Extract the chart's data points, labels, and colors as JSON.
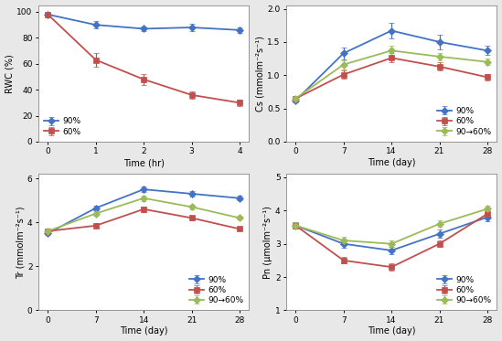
{
  "top_left": {
    "xlabel": "Time (hr)",
    "ylabel": "RWC (%)",
    "x": [
      0,
      1,
      2,
      3,
      4
    ],
    "series": [
      {
        "label": "90%",
        "y": [
          98,
          90,
          87,
          88,
          86
        ],
        "yerr": [
          1.0,
          3.0,
          2.0,
          2.5,
          2.0
        ],
        "color": "#4472c4",
        "marker": "D"
      },
      {
        "label": "60%",
        "y": [
          98,
          63,
          48,
          36,
          30
        ],
        "yerr": [
          1.0,
          5.0,
          4.0,
          3.0,
          2.5
        ],
        "color": "#c0504d",
        "marker": "s"
      }
    ],
    "ylim": [
      0,
      105
    ],
    "yticks": [
      0,
      20,
      40,
      60,
      80,
      100
    ],
    "legend_loc": "lower left",
    "legend_bbox": null
  },
  "top_right": {
    "xlabel": "Time (day)",
    "ylabel": "Cs (mmolm⁻²s⁻¹)",
    "x": [
      0,
      7,
      14,
      21,
      28
    ],
    "series": [
      {
        "label": "90%",
        "y": [
          0.62,
          1.33,
          1.67,
          1.5,
          1.37
        ],
        "yerr": [
          0.03,
          0.09,
          0.12,
          0.11,
          0.07
        ],
        "color": "#4472c4",
        "marker": "D"
      },
      {
        "label": "60%",
        "y": [
          0.65,
          1.01,
          1.26,
          1.13,
          0.97
        ],
        "yerr": [
          0.03,
          0.06,
          0.07,
          0.06,
          0.05
        ],
        "color": "#c0504d",
        "marker": "s"
      },
      {
        "label": "90→60%",
        "y": [
          0.65,
          1.16,
          1.37,
          1.28,
          1.2
        ],
        "yerr": [
          0.03,
          0.07,
          0.08,
          0.06,
          0.05
        ],
        "color": "#9bbb59",
        "marker": "D"
      }
    ],
    "ylim": [
      0,
      2.05
    ],
    "yticks": [
      0,
      0.5,
      1.0,
      1.5,
      2.0
    ],
    "legend_loc": "lower right",
    "legend_bbox": null
  },
  "bottom_left": {
    "xlabel": "Time (day)",
    "ylabel": "Tr (mmolm⁻²s⁻¹)",
    "x": [
      0,
      7,
      14,
      21,
      28
    ],
    "series": [
      {
        "label": "90%",
        "y": [
          3.5,
          4.65,
          5.5,
          5.3,
          5.1
        ],
        "yerr": [
          0.08,
          0.12,
          0.12,
          0.12,
          0.1
        ],
        "color": "#4472c4",
        "marker": "D"
      },
      {
        "label": "60%",
        "y": [
          3.6,
          3.85,
          4.6,
          4.2,
          3.7
        ],
        "yerr": [
          0.08,
          0.1,
          0.12,
          0.1,
          0.08
        ],
        "color": "#c0504d",
        "marker": "s"
      },
      {
        "label": "90→60%",
        "y": [
          3.6,
          4.4,
          5.1,
          4.7,
          4.2
        ],
        "yerr": [
          0.08,
          0.1,
          0.12,
          0.1,
          0.08
        ],
        "color": "#9bbb59",
        "marker": "D"
      }
    ],
    "ylim": [
      0,
      6.2
    ],
    "yticks": [
      0,
      2,
      4,
      6
    ],
    "legend_loc": "lower right",
    "legend_bbox": null
  },
  "bottom_right": {
    "xlabel": "Time (day)",
    "ylabel": "Pn (μmolm⁻²s⁻¹)",
    "x": [
      0,
      7,
      14,
      21,
      28
    ],
    "series": [
      {
        "label": "90%",
        "y": [
          3.55,
          3.0,
          2.8,
          3.3,
          3.8
        ],
        "yerr": [
          0.1,
          0.12,
          0.12,
          0.12,
          0.12
        ],
        "color": "#4472c4",
        "marker": "D"
      },
      {
        "label": "60%",
        "y": [
          3.55,
          2.5,
          2.3,
          3.0,
          3.9
        ],
        "yerr": [
          0.1,
          0.1,
          0.1,
          0.1,
          0.1
        ],
        "color": "#c0504d",
        "marker": "s"
      },
      {
        "label": "90→60%",
        "y": [
          3.55,
          3.1,
          3.0,
          3.6,
          4.05
        ],
        "yerr": [
          0.1,
          0.1,
          0.1,
          0.1,
          0.1
        ],
        "color": "#9bbb59",
        "marker": "D"
      }
    ],
    "ylim": [
      1,
      5.1
    ],
    "yticks": [
      1,
      2,
      3,
      4,
      5
    ],
    "legend_loc": "lower right",
    "legend_bbox": null
  },
  "bg_color": "#ffffff",
  "fig_bg_color": "#e8e8e8",
  "linewidth": 1.3,
  "markersize": 4,
  "fontsize_label": 7,
  "fontsize_tick": 6.5,
  "fontsize_legend": 6.5
}
